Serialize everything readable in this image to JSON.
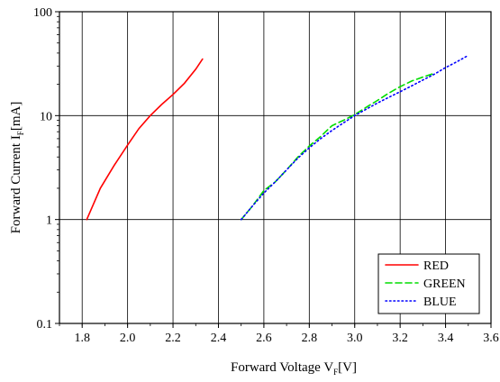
{
  "chart_data": {
    "type": "line",
    "xlabel": "Forward Voltage V",
    "xlabel_sub": "F",
    "xlabel_unit": "[V]",
    "ylabel": "Forward Current I",
    "ylabel_sub": "F",
    "ylabel_unit": "[mA]",
    "xlim": [
      1.7,
      3.6
    ],
    "ylim": [
      0.1,
      100
    ],
    "y_scale": "log",
    "x_ticks": [
      "1.8",
      "2.0",
      "2.2",
      "2.4",
      "2.6",
      "2.8",
      "3.0",
      "3.2",
      "3.4",
      "3.6"
    ],
    "y_ticks": [
      "0.1",
      "1",
      "10",
      "100"
    ],
    "grid": true,
    "legend_position": "bottom-right",
    "series": [
      {
        "name": "RED",
        "color": "#ff0000",
        "style": "solid",
        "x": [
          1.82,
          1.88,
          1.94,
          2.0,
          2.05,
          2.1,
          2.15,
          2.2,
          2.25,
          2.3,
          2.33
        ],
        "y": [
          1.0,
          2.0,
          3.3,
          5.2,
          7.5,
          10.0,
          12.8,
          16.0,
          20.5,
          28.0,
          35.0
        ]
      },
      {
        "name": "GREEN",
        "color": "#00dd00",
        "style": "dashed",
        "x": [
          2.5,
          2.55,
          2.6,
          2.65,
          2.7,
          2.75,
          2.8,
          2.85,
          2.9,
          2.95,
          3.0,
          3.05,
          3.1,
          3.15,
          3.2,
          3.25,
          3.3,
          3.35
        ],
        "y": [
          1.0,
          1.35,
          1.9,
          2.3,
          3.0,
          4.0,
          5.1,
          6.3,
          8.0,
          9.0,
          10.2,
          12.0,
          14.0,
          16.5,
          19.0,
          21.5,
          23.5,
          25.5
        ]
      },
      {
        "name": "BLUE",
        "color": "#0000ff",
        "style": "dotted",
        "x": [
          2.5,
          2.55,
          2.6,
          2.65,
          2.7,
          2.75,
          2.8,
          2.85,
          2.9,
          2.95,
          3.0,
          3.05,
          3.1,
          3.15,
          3.2,
          3.25,
          3.3,
          3.35,
          3.4,
          3.45,
          3.5
        ],
        "y": [
          1.0,
          1.35,
          1.8,
          2.3,
          3.0,
          3.9,
          4.9,
          6.0,
          7.2,
          8.5,
          10.0,
          11.5,
          13.2,
          15.0,
          17.0,
          19.3,
          22.0,
          25.0,
          29.0,
          33.0,
          38.0
        ]
      }
    ]
  }
}
